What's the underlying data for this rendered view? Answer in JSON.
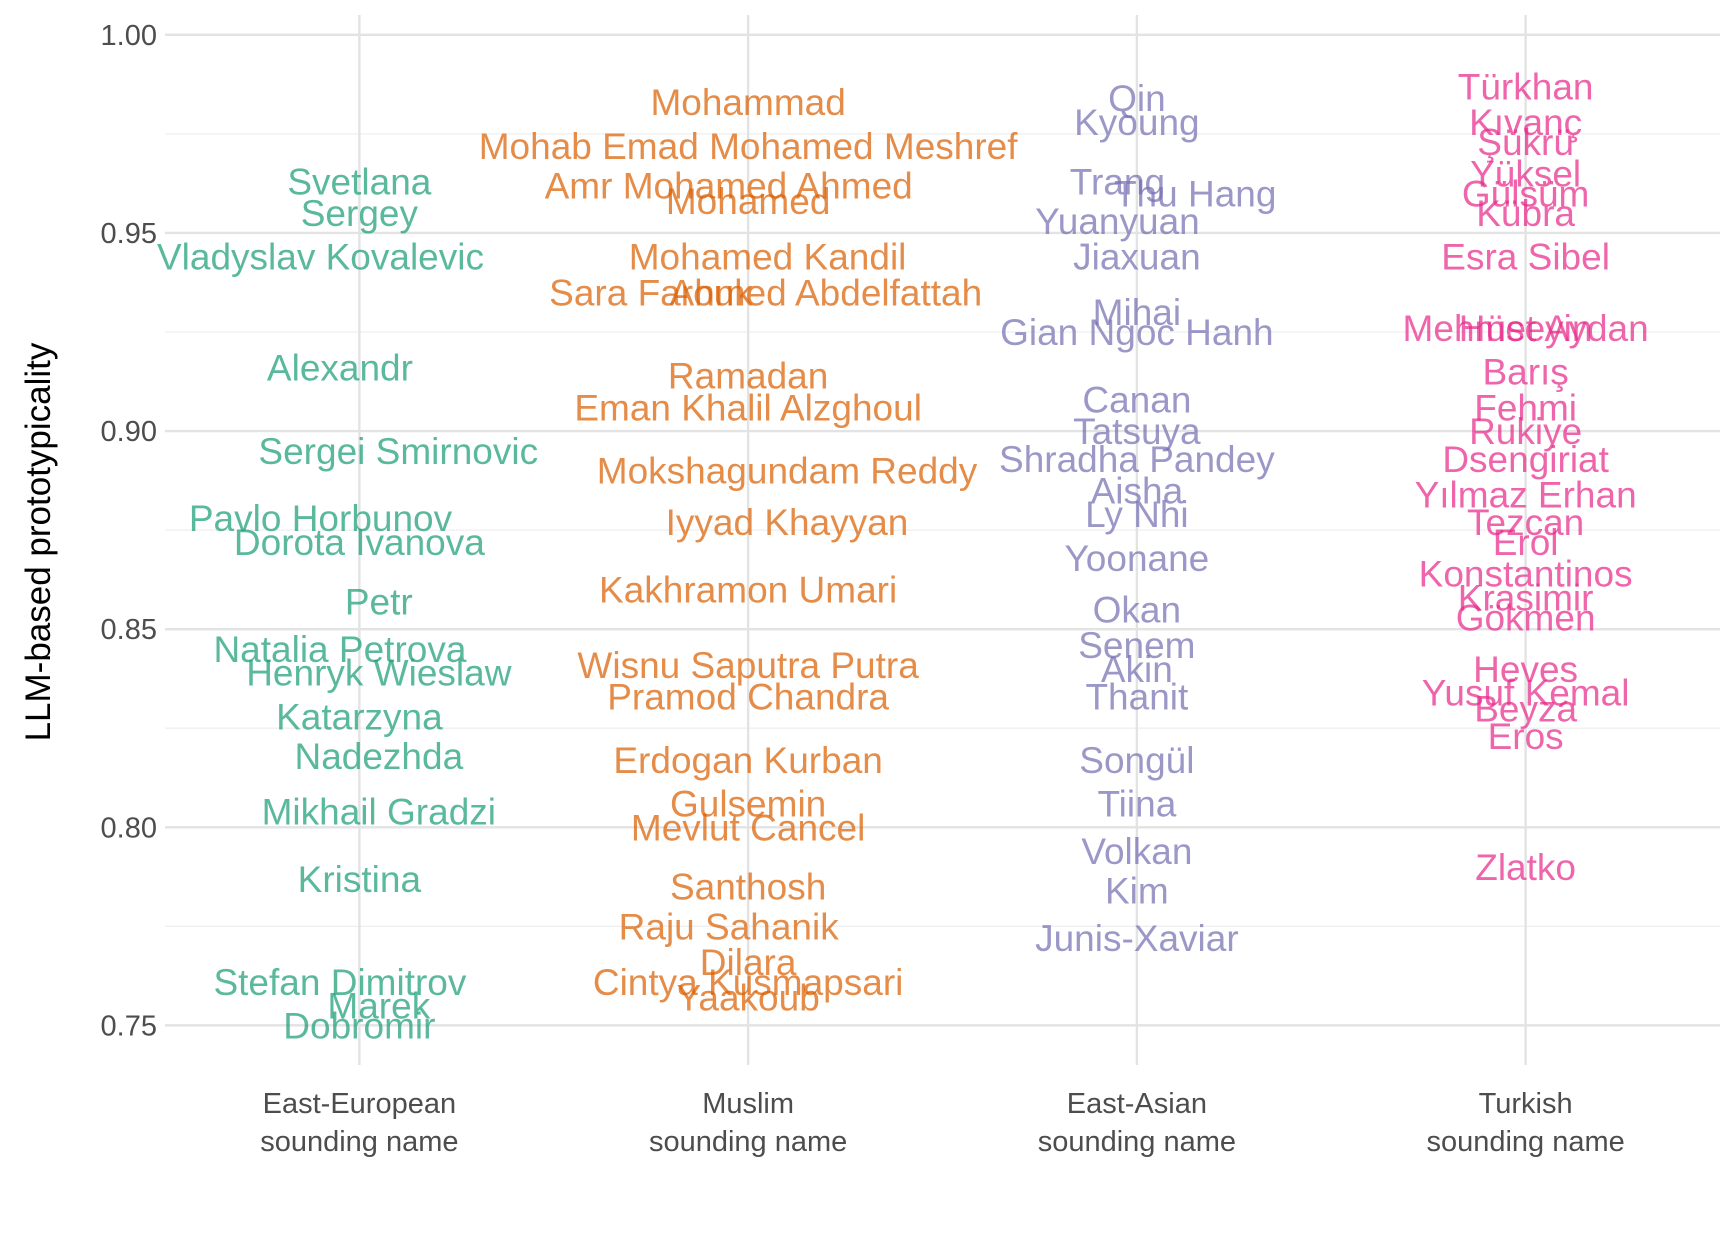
{
  "chart_data": {
    "type": "scatter",
    "title": "",
    "xlabel": "",
    "ylabel": "LLM-based prototypicality",
    "ylim": [
      0.74,
      1.005
    ],
    "yticks": [
      "0.75",
      "0.80",
      "0.85",
      "0.90",
      "0.95",
      "1.00"
    ],
    "grid": true,
    "legend": "none",
    "categories": [
      "East-European\nsounding name",
      "Muslim\nsounding name",
      "East-Asian\nsounding name",
      "Turkish\nsounding name"
    ],
    "series": [
      {
        "category": "East-European\nsounding name",
        "color": "#1b9e77",
        "points": [
          {
            "label": "Svetlana",
            "y": 0.963,
            "dx": 0.0
          },
          {
            "label": "Sergey",
            "y": 0.955,
            "dx": 0.0
          },
          {
            "label": "Vladyslav Kovalevic",
            "y": 0.944,
            "dx": -0.1
          },
          {
            "label": "Alexandr",
            "y": 0.916,
            "dx": -0.05
          },
          {
            "label": "Sergei Smirnovic",
            "y": 0.895,
            "dx": 0.1
          },
          {
            "label": "Pavlo Horbunov",
            "y": 0.878,
            "dx": -0.1
          },
          {
            "label": "Dorota Ivanova",
            "y": 0.872,
            "dx": 0.0
          },
          {
            "label": "Petr",
            "y": 0.857,
            "dx": 0.05
          },
          {
            "label": "Natalia Petrova",
            "y": 0.845,
            "dx": -0.05
          },
          {
            "label": "Henryk Wieslaw",
            "y": 0.839,
            "dx": 0.05
          },
          {
            "label": "Katarzyna",
            "y": 0.828,
            "dx": 0.0
          },
          {
            "label": "Nadezhda",
            "y": 0.818,
            "dx": 0.05
          },
          {
            "label": "Mikhail Gradzi",
            "y": 0.804,
            "dx": 0.05
          },
          {
            "label": "Kristina",
            "y": 0.787,
            "dx": 0.0
          },
          {
            "label": "Stefan Dimitrov",
            "y": 0.761,
            "dx": -0.05
          },
          {
            "label": "Marek",
            "y": 0.755,
            "dx": 0.05
          },
          {
            "label": "Dobromir",
            "y": 0.75,
            "dx": 0.0
          }
        ]
      },
      {
        "category": "Muslim\nsounding name",
        "color": "#d95f02",
        "points": [
          {
            "label": "Mohammad",
            "y": 0.983,
            "dx": 0.0
          },
          {
            "label": "Mohab Emad Mohamed Meshref",
            "y": 0.972,
            "dx": 0.0
          },
          {
            "label": "Amr Mohamed Ahmed",
            "y": 0.962,
            "dx": -0.05
          },
          {
            "label": "Mohamed",
            "y": 0.958,
            "dx": 0.0
          },
          {
            "label": "Mohamed Kandil",
            "y": 0.944,
            "dx": 0.05
          },
          {
            "label": "Sara Farouk",
            "y": 0.935,
            "dx": -0.25
          },
          {
            "label": "Ahmed Abdelfattah",
            "y": 0.935,
            "dx": 0.2
          },
          {
            "label": "Ramadan",
            "y": 0.914,
            "dx": 0.0
          },
          {
            "label": "Eman Khalil Alzghoul",
            "y": 0.906,
            "dx": 0.0
          },
          {
            "label": "Mokshagundam Reddy",
            "y": 0.89,
            "dx": 0.1
          },
          {
            "label": "Iyyad Khayyan",
            "y": 0.877,
            "dx": 0.1
          },
          {
            "label": "Kakhramon Umari",
            "y": 0.86,
            "dx": 0.0
          },
          {
            "label": "Wisnu Saputra Putra",
            "y": 0.841,
            "dx": 0.0
          },
          {
            "label": "Pramod Chandra",
            "y": 0.833,
            "dx": 0.0
          },
          {
            "label": "Erdogan Kurban",
            "y": 0.817,
            "dx": 0.0
          },
          {
            "label": "Gulsemin",
            "y": 0.806,
            "dx": 0.0
          },
          {
            "label": "Mevlut Cancel",
            "y": 0.8,
            "dx": 0.0
          },
          {
            "label": "Santhosh",
            "y": 0.785,
            "dx": 0.0
          },
          {
            "label": "Raju Sahanik",
            "y": 0.775,
            "dx": -0.05
          },
          {
            "label": "Dilara",
            "y": 0.766,
            "dx": 0.0
          },
          {
            "label": "Cintya Kusmapsari",
            "y": 0.761,
            "dx": 0.0
          },
          {
            "label": "Yaakoub",
            "y": 0.757,
            "dx": 0.0
          }
        ]
      },
      {
        "category": "East-Asian\nsounding name",
        "color": "#7570b3",
        "points": [
          {
            "label": "Qin",
            "y": 0.984,
            "dx": 0.0
          },
          {
            "label": "Kyoung",
            "y": 0.978,
            "dx": 0.0
          },
          {
            "label": "Trang",
            "y": 0.963,
            "dx": -0.05
          },
          {
            "label": "Thu Hang",
            "y": 0.96,
            "dx": 0.15
          },
          {
            "label": "Yuanyuan",
            "y": 0.953,
            "dx": -0.05
          },
          {
            "label": "Jiaxuan",
            "y": 0.944,
            "dx": 0.0
          },
          {
            "label": "Mihai",
            "y": 0.93,
            "dx": 0.0
          },
          {
            "label": "Gian Ngoc Hanh",
            "y": 0.925,
            "dx": 0.0
          },
          {
            "label": "Canan",
            "y": 0.908,
            "dx": 0.0
          },
          {
            "label": "Tatsuya",
            "y": 0.9,
            "dx": 0.0
          },
          {
            "label": "Shradha Pandey",
            "y": 0.893,
            "dx": 0.0
          },
          {
            "label": "Aisha",
            "y": 0.885,
            "dx": 0.0
          },
          {
            "label": "Ly Nhi",
            "y": 0.879,
            "dx": 0.0
          },
          {
            "label": "Yoonane",
            "y": 0.868,
            "dx": 0.0
          },
          {
            "label": "Okan",
            "y": 0.855,
            "dx": 0.0
          },
          {
            "label": "Senem",
            "y": 0.846,
            "dx": 0.0
          },
          {
            "label": "Akin",
            "y": 0.84,
            "dx": 0.0
          },
          {
            "label": "Thanit",
            "y": 0.833,
            "dx": 0.0
          },
          {
            "label": "Songül",
            "y": 0.817,
            "dx": 0.0
          },
          {
            "label": "Tiina",
            "y": 0.806,
            "dx": 0.0
          },
          {
            "label": "Volkan",
            "y": 0.794,
            "dx": 0.0
          },
          {
            "label": "Kim",
            "y": 0.784,
            "dx": 0.0
          },
          {
            "label": "Junis-Xaviar",
            "y": 0.772,
            "dx": 0.0
          }
        ]
      },
      {
        "category": "Turkish\nsounding name",
        "color": "#e7298a",
        "points": [
          {
            "label": "Türkhan",
            "y": 0.987,
            "dx": 0.0
          },
          {
            "label": "Kıvanç",
            "y": 0.978,
            "dx": 0.0
          },
          {
            "label": "Şükrü",
            "y": 0.973,
            "dx": 0.0
          },
          {
            "label": "Yüksel",
            "y": 0.965,
            "dx": 0.0
          },
          {
            "label": "Gülsüm",
            "y": 0.96,
            "dx": 0.0
          },
          {
            "label": "Kübra",
            "y": 0.955,
            "dx": 0.0
          },
          {
            "label": "Esra Sibel",
            "y": 0.944,
            "dx": 0.0
          },
          {
            "label": "Mehmet Aydan",
            "y": 0.926,
            "dx": 0.0
          },
          {
            "label": "Hüseyin",
            "y": 0.926,
            "dx": 0.0
          },
          {
            "label": "Barış",
            "y": 0.915,
            "dx": 0.0
          },
          {
            "label": "Fehmi",
            "y": 0.906,
            "dx": 0.0
          },
          {
            "label": "Rukiye",
            "y": 0.9,
            "dx": 0.0
          },
          {
            "label": "Dsengiriat",
            "y": 0.893,
            "dx": 0.0
          },
          {
            "label": "Yılmaz Erhan",
            "y": 0.884,
            "dx": 0.0
          },
          {
            "label": "Tezcan",
            "y": 0.877,
            "dx": 0.0
          },
          {
            "label": "Erol",
            "y": 0.872,
            "dx": 0.0
          },
          {
            "label": "Konstantinos",
            "y": 0.864,
            "dx": 0.0
          },
          {
            "label": "Krasimir",
            "y": 0.858,
            "dx": 0.0
          },
          {
            "label": "Gökmen",
            "y": 0.853,
            "dx": 0.0
          },
          {
            "label": "Heves",
            "y": 0.84,
            "dx": 0.0
          },
          {
            "label": "Yusuf Kemal",
            "y": 0.834,
            "dx": 0.0
          },
          {
            "label": "Beyza",
            "y": 0.83,
            "dx": 0.0
          },
          {
            "label": "Eros",
            "y": 0.823,
            "dx": 0.0
          },
          {
            "label": "Zlatko",
            "y": 0.79,
            "dx": 0.0
          }
        ]
      }
    ]
  }
}
